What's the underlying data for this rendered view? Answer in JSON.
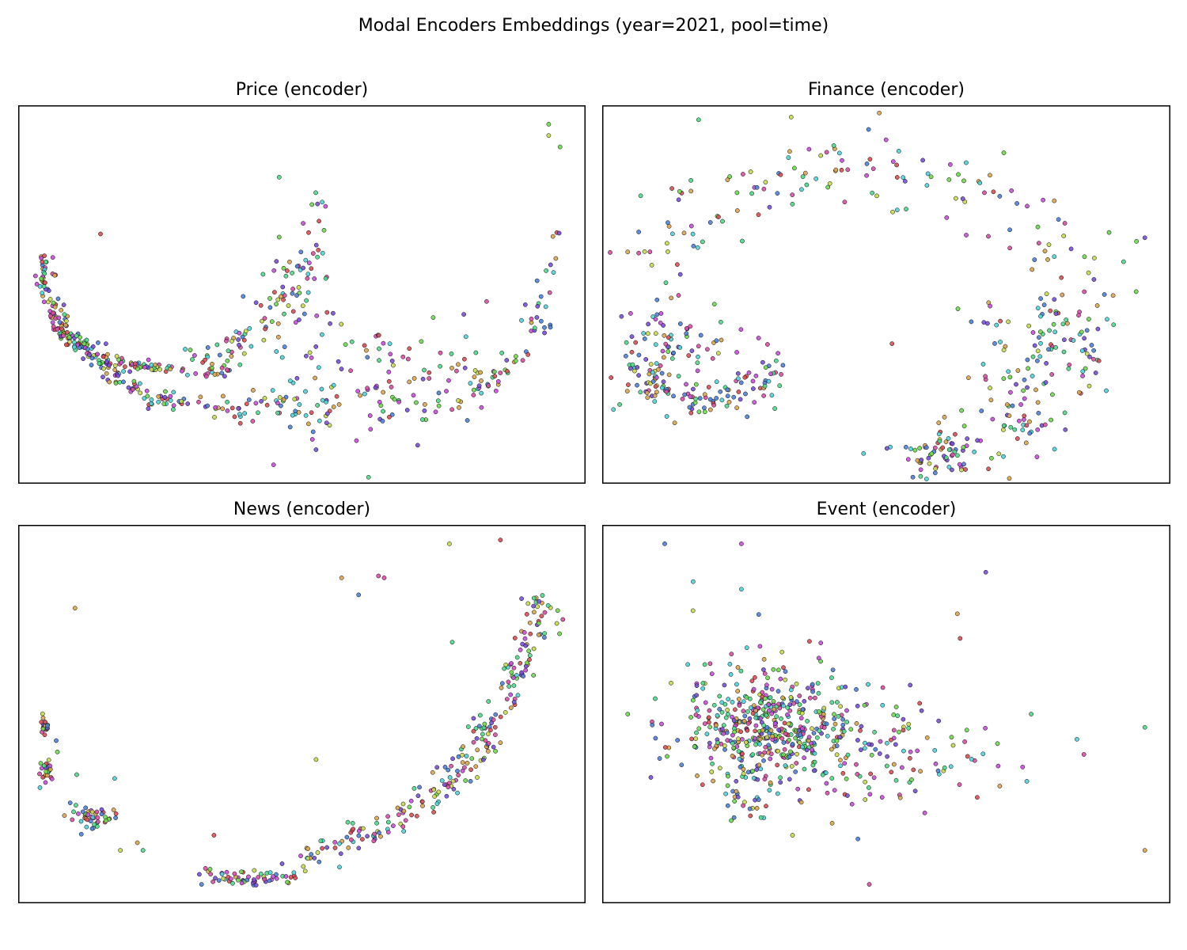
{
  "figure": {
    "title": "Modal Encoders Embeddings (year=2021, pool=time)"
  },
  "palette": [
    "#d94f55",
    "#d9a54f",
    "#c7d94f",
    "#6fd94f",
    "#4fd98a",
    "#4fd1d9",
    "#4f82d9",
    "#7a4fd9",
    "#c84fd9",
    "#d94fa6"
  ],
  "chart_data": [
    {
      "type": "scatter",
      "title": "Price (encoder)",
      "xlabel": "",
      "ylabel": "",
      "xlim": [
        0,
        100
      ],
      "ylim": [
        0,
        100
      ],
      "axes_ticks": false,
      "grid": false,
      "legend": "none",
      "marker": {
        "edge": "#000000"
      },
      "structure": [
        {
          "kind": "arc",
          "n": 120,
          "x0": 4.5,
          "y0": 60,
          "x1": 13,
          "y1": 35,
          "cx": 5,
          "cy": 40,
          "spread": 0.9
        },
        {
          "kind": "arc",
          "n": 70,
          "x0": 12,
          "y0": 35,
          "x1": 38,
          "y1": 30,
          "cx": 22,
          "cy": 29,
          "spread": 0.9
        },
        {
          "kind": "arc",
          "n": 90,
          "x0": 13,
          "y0": 35,
          "x1": 40,
          "y1": 20,
          "cx": 18,
          "cy": 20,
          "spread": 1.3
        },
        {
          "kind": "arc",
          "n": 80,
          "x0": 40,
          "y0": 22,
          "x1": 80,
          "y1": 25,
          "cx": 60,
          "cy": 15,
          "spread": 3.5
        },
        {
          "kind": "arc",
          "n": 70,
          "x0": 30,
          "y0": 32,
          "x1": 53,
          "y1": 76,
          "cx": 50,
          "cy": 40,
          "spread": 1.6
        },
        {
          "kind": "arc",
          "n": 50,
          "x0": 80,
          "y0": 25,
          "x1": 94,
          "y1": 66,
          "cx": 93,
          "cy": 30,
          "spread": 1.3
        },
        {
          "kind": "blob",
          "n": 90,
          "x": 63,
          "y": 30,
          "sx": 13,
          "sy": 9
        },
        {
          "kind": "blob",
          "n": 30,
          "x": 50,
          "y": 52,
          "sx": 4,
          "sy": 8
        },
        {
          "kind": "point",
          "x": 14.5,
          "y": 66
        },
        {
          "kind": "point",
          "x": 46,
          "y": 81
        },
        {
          "kind": "point",
          "x": 93.5,
          "y": 95
        },
        {
          "kind": "point",
          "x": 93.5,
          "y": 92
        },
        {
          "kind": "point",
          "x": 95.5,
          "y": 89
        },
        {
          "kind": "point",
          "x": 45,
          "y": 5
        },
        {
          "kind": "point",
          "x": 52.5,
          "y": 9
        }
      ]
    },
    {
      "type": "scatter",
      "title": "Finance (encoder)",
      "xlabel": "",
      "ylabel": "",
      "xlim": [
        0,
        100
      ],
      "ylim": [
        0,
        100
      ],
      "axes_ticks": false,
      "grid": false,
      "legend": "none",
      "marker": {
        "edge": "#000000"
      },
      "structure": [
        {
          "kind": "arc",
          "n": 140,
          "x0": 5,
          "y0": 56,
          "x1": 88,
          "y1": 54,
          "cx": 45,
          "cy": 115,
          "spread": 5.5
        },
        {
          "kind": "blob",
          "n": 60,
          "x": 9,
          "y": 35,
          "sx": 3,
          "sy": 9
        },
        {
          "kind": "arc",
          "n": 100,
          "x0": 7,
          "y0": 28,
          "x1": 32,
          "y1": 32,
          "cx": 18,
          "cy": 15,
          "spread": 2.2
        },
        {
          "kind": "blob",
          "n": 30,
          "x": 18,
          "y": 37,
          "sx": 6,
          "sy": 4
        },
        {
          "kind": "blob",
          "n": 80,
          "x": 75,
          "y": 28,
          "sx": 6,
          "sy": 12
        },
        {
          "kind": "blob",
          "n": 70,
          "x": 61,
          "y": 8,
          "sx": 4,
          "sy": 3
        },
        {
          "kind": "blob",
          "n": 50,
          "x": 81,
          "y": 43,
          "sx": 6,
          "sy": 6
        },
        {
          "kind": "blob",
          "n": 20,
          "x": 73,
          "y": 16,
          "sx": 4,
          "sy": 3
        },
        {
          "kind": "point",
          "x": 5,
          "y": 45
        },
        {
          "kind": "point",
          "x": 9,
          "y": 27
        },
        {
          "kind": "point",
          "x": 16,
          "y": 25
        },
        {
          "kind": "point",
          "x": 51,
          "y": 37
        },
        {
          "kind": "point",
          "x": 46,
          "y": 8
        },
        {
          "kind": "point",
          "x": 95.5,
          "y": 65
        },
        {
          "kind": "point",
          "x": 90,
          "y": 42
        }
      ]
    },
    {
      "type": "scatter",
      "title": "News (encoder)",
      "xlabel": "",
      "ylabel": "",
      "xlim": [
        0,
        100
      ],
      "ylim": [
        0,
        100
      ],
      "axes_ticks": false,
      "grid": false,
      "legend": "none",
      "marker": {
        "edge": "#000000"
      },
      "structure": [
        {
          "kind": "blob",
          "n": 25,
          "x": 4.7,
          "y": 47,
          "sx": 0.4,
          "sy": 1.5
        },
        {
          "kind": "blob",
          "n": 25,
          "x": 5,
          "y": 35,
          "sx": 0.5,
          "sy": 1.8
        },
        {
          "kind": "blob",
          "n": 45,
          "x": 13,
          "y": 23,
          "sx": 2.3,
          "sy": 1.8
        },
        {
          "kind": "blob",
          "n": 60,
          "x": 41,
          "y": 7,
          "sx": 4.5,
          "sy": 1.2
        },
        {
          "kind": "arc",
          "n": 230,
          "x0": 50,
          "y0": 12,
          "x1": 92,
          "y1": 82,
          "cx": 85,
          "cy": 25,
          "spread": 1.7
        },
        {
          "kind": "point",
          "x": 10,
          "y": 78
        },
        {
          "kind": "point",
          "x": 6.7,
          "y": 43
        },
        {
          "kind": "point",
          "x": 6.9,
          "y": 40
        },
        {
          "kind": "point",
          "x": 10.3,
          "y": 34
        },
        {
          "kind": "point",
          "x": 17,
          "y": 33
        },
        {
          "kind": "point",
          "x": 21,
          "y": 16
        },
        {
          "kind": "point",
          "x": 18,
          "y": 14
        },
        {
          "kind": "point",
          "x": 22,
          "y": 14
        },
        {
          "kind": "point",
          "x": 34.5,
          "y": 18
        },
        {
          "kind": "point",
          "x": 57,
          "y": 86
        },
        {
          "kind": "point",
          "x": 64.5,
          "y": 86
        },
        {
          "kind": "point",
          "x": 60,
          "y": 81.5
        },
        {
          "kind": "point",
          "x": 76,
          "y": 95
        },
        {
          "kind": "point",
          "x": 85,
          "y": 96
        },
        {
          "kind": "point",
          "x": 96,
          "y": 75
        },
        {
          "kind": "point",
          "x": 76.5,
          "y": 69
        },
        {
          "kind": "point",
          "x": 52.5,
          "y": 38
        },
        {
          "kind": "point",
          "x": 63.5,
          "y": 86.5
        }
      ]
    },
    {
      "type": "scatter",
      "title": "Event (encoder)",
      "xlabel": "",
      "ylabel": "",
      "xlim": [
        0,
        100
      ],
      "ylim": [
        0,
        100
      ],
      "axes_ticks": false,
      "grid": false,
      "legend": "none",
      "marker": {
        "edge": "#000000"
      },
      "structure": [
        {
          "kind": "blob",
          "n": 380,
          "x": 30,
          "y": 46,
          "sx": 8,
          "sy": 6
        },
        {
          "kind": "blob",
          "n": 110,
          "x": 42,
          "y": 43,
          "sx": 11,
          "sy": 7
        },
        {
          "kind": "blob",
          "n": 70,
          "x": 25,
          "y": 57,
          "sx": 8,
          "sy": 9
        },
        {
          "kind": "blob",
          "n": 40,
          "x": 55,
          "y": 37,
          "sx": 10,
          "sy": 6
        },
        {
          "kind": "blob",
          "n": 30,
          "x": 27,
          "y": 29,
          "sx": 3,
          "sy": 3
        },
        {
          "kind": "point",
          "x": 11,
          "y": 95
        },
        {
          "kind": "point",
          "x": 24.5,
          "y": 95
        },
        {
          "kind": "point",
          "x": 16,
          "y": 85
        },
        {
          "kind": "point",
          "x": 24.5,
          "y": 83
        },
        {
          "kind": "point",
          "x": 4.5,
          "y": 50
        },
        {
          "kind": "point",
          "x": 62.5,
          "y": 76.5
        },
        {
          "kind": "point",
          "x": 63,
          "y": 70
        },
        {
          "kind": "point",
          "x": 67.5,
          "y": 87.5
        },
        {
          "kind": "point",
          "x": 75.5,
          "y": 50
        },
        {
          "kind": "point",
          "x": 74,
          "y": 36
        },
        {
          "kind": "point",
          "x": 66,
          "y": 28
        },
        {
          "kind": "point",
          "x": 95.5,
          "y": 46.5
        },
        {
          "kind": "point",
          "x": 95.5,
          "y": 14
        },
        {
          "kind": "point",
          "x": 47,
          "y": 5
        },
        {
          "kind": "point",
          "x": 33.5,
          "y": 18
        },
        {
          "kind": "point",
          "x": 45,
          "y": 17
        }
      ]
    }
  ]
}
